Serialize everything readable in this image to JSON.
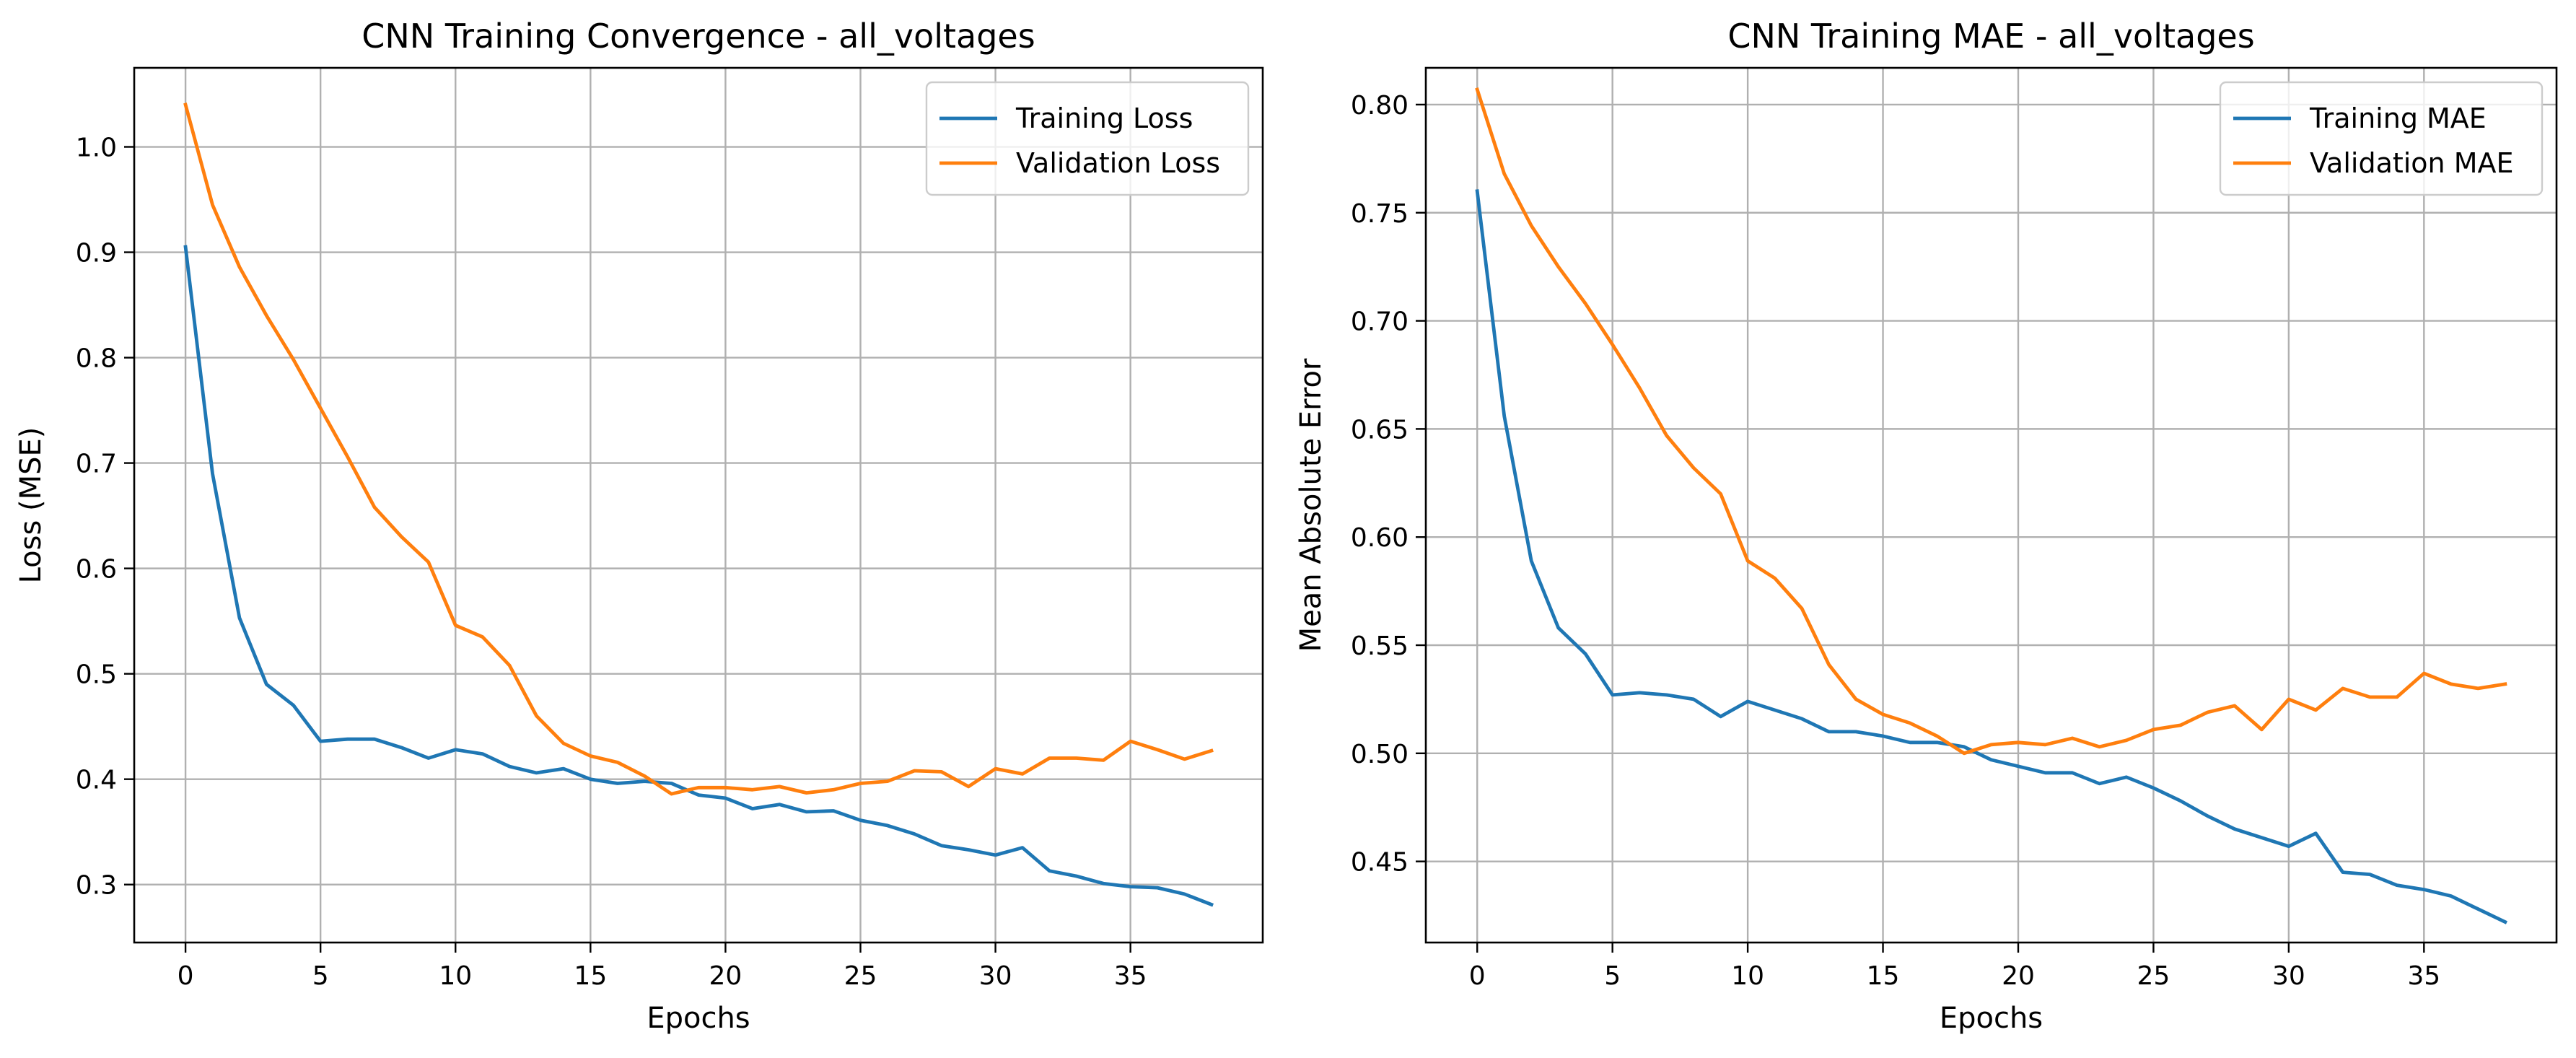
{
  "colors": {
    "series1": "#1f77b4",
    "series2": "#ff7f0e",
    "grid": "#b0b0b0",
    "axes": "#000000",
    "legend_border": "#cccccc"
  },
  "chart_data": [
    {
      "type": "line",
      "title": "CNN Training Convergence - all_voltages",
      "xlabel": "Epochs",
      "ylabel": "Loss (MSE)",
      "xlim": [
        -1.9,
        39.9
      ],
      "ylim": [
        0.245,
        1.075
      ],
      "xticks": [
        0,
        5,
        10,
        15,
        20,
        25,
        30,
        35
      ],
      "yticks": [
        0.3,
        0.4,
        0.5,
        0.6,
        0.7,
        0.8,
        0.9,
        1.0
      ],
      "xtick_labels": [
        "0",
        "5",
        "10",
        "15",
        "20",
        "25",
        "30",
        "35"
      ],
      "ytick_labels": [
        "0.3",
        "0.4",
        "0.5",
        "0.6",
        "0.7",
        "0.8",
        "0.9",
        "1.0"
      ],
      "grid": true,
      "legend_position": "top-right",
      "x": [
        0,
        1,
        2,
        3,
        4,
        5,
        6,
        7,
        8,
        9,
        10,
        11,
        12,
        13,
        14,
        15,
        16,
        17,
        18,
        19,
        20,
        21,
        22,
        23,
        24,
        25,
        26,
        27,
        28,
        29,
        30,
        31,
        32,
        33,
        34,
        35,
        36,
        37,
        38
      ],
      "series": [
        {
          "name": "Training Loss",
          "values": [
            0.905,
            0.69,
            0.553,
            0.49,
            0.47,
            0.436,
            0.438,
            0.438,
            0.43,
            0.42,
            0.428,
            0.424,
            0.412,
            0.406,
            0.41,
            0.4,
            0.396,
            0.398,
            0.396,
            0.385,
            0.382,
            0.372,
            0.376,
            0.369,
            0.37,
            0.361,
            0.356,
            0.348,
            0.337,
            0.333,
            0.328,
            0.335,
            0.313,
            0.308,
            0.301,
            0.298,
            0.297,
            0.291,
            0.281
          ]
        },
        {
          "name": "Validation Loss",
          "values": [
            1.04,
            0.945,
            0.886,
            0.84,
            0.798,
            0.752,
            0.706,
            0.658,
            0.63,
            0.606,
            0.546,
            0.535,
            0.508,
            0.46,
            0.434,
            0.422,
            0.416,
            0.403,
            0.386,
            0.392,
            0.392,
            0.39,
            0.393,
            0.387,
            0.39,
            0.396,
            0.398,
            0.408,
            0.407,
            0.393,
            0.41,
            0.405,
            0.42,
            0.42,
            0.418,
            0.436,
            0.428,
            0.419,
            0.427
          ]
        }
      ]
    },
    {
      "type": "line",
      "title": "CNN Training MAE - all_voltages",
      "xlabel": "Epochs",
      "ylabel": "Mean Absolute Error",
      "xlim": [
        -1.9,
        39.9
      ],
      "ylim": [
        0.4125,
        0.817
      ],
      "xticks": [
        0,
        5,
        10,
        15,
        20,
        25,
        30,
        35
      ],
      "yticks": [
        0.45,
        0.5,
        0.55,
        0.6,
        0.65,
        0.7,
        0.75,
        0.8
      ],
      "xtick_labels": [
        "0",
        "5",
        "10",
        "15",
        "20",
        "25",
        "30",
        "35"
      ],
      "ytick_labels": [
        "0.45",
        "0.50",
        "0.55",
        "0.60",
        "0.65",
        "0.70",
        "0.75",
        "0.80"
      ],
      "grid": true,
      "legend_position": "top-right",
      "x": [
        0,
        1,
        2,
        3,
        4,
        5,
        6,
        7,
        8,
        9,
        10,
        11,
        12,
        13,
        14,
        15,
        16,
        17,
        18,
        19,
        20,
        21,
        22,
        23,
        24,
        25,
        26,
        27,
        28,
        29,
        30,
        31,
        32,
        33,
        34,
        35,
        36,
        37,
        38
      ],
      "series": [
        {
          "name": "Training MAE",
          "values": [
            0.76,
            0.656,
            0.589,
            0.558,
            0.546,
            0.527,
            0.528,
            0.527,
            0.525,
            0.517,
            0.524,
            0.52,
            0.516,
            0.51,
            0.51,
            0.508,
            0.505,
            0.505,
            0.503,
            0.497,
            0.494,
            0.491,
            0.491,
            0.486,
            0.489,
            0.484,
            0.478,
            0.471,
            0.465,
            0.461,
            0.457,
            0.463,
            0.445,
            0.444,
            0.439,
            0.437,
            0.434,
            0.428,
            0.422
          ]
        },
        {
          "name": "Validation MAE",
          "values": [
            0.807,
            0.768,
            0.744,
            0.725,
            0.708,
            0.689,
            0.669,
            0.647,
            0.632,
            0.62,
            0.589,
            0.581,
            0.567,
            0.541,
            0.525,
            0.518,
            0.514,
            0.508,
            0.5,
            0.504,
            0.505,
            0.504,
            0.507,
            0.503,
            0.506,
            0.511,
            0.513,
            0.519,
            0.522,
            0.511,
            0.525,
            0.52,
            0.53,
            0.526,
            0.526,
            0.537,
            0.532,
            0.53,
            0.532
          ]
        }
      ]
    }
  ]
}
